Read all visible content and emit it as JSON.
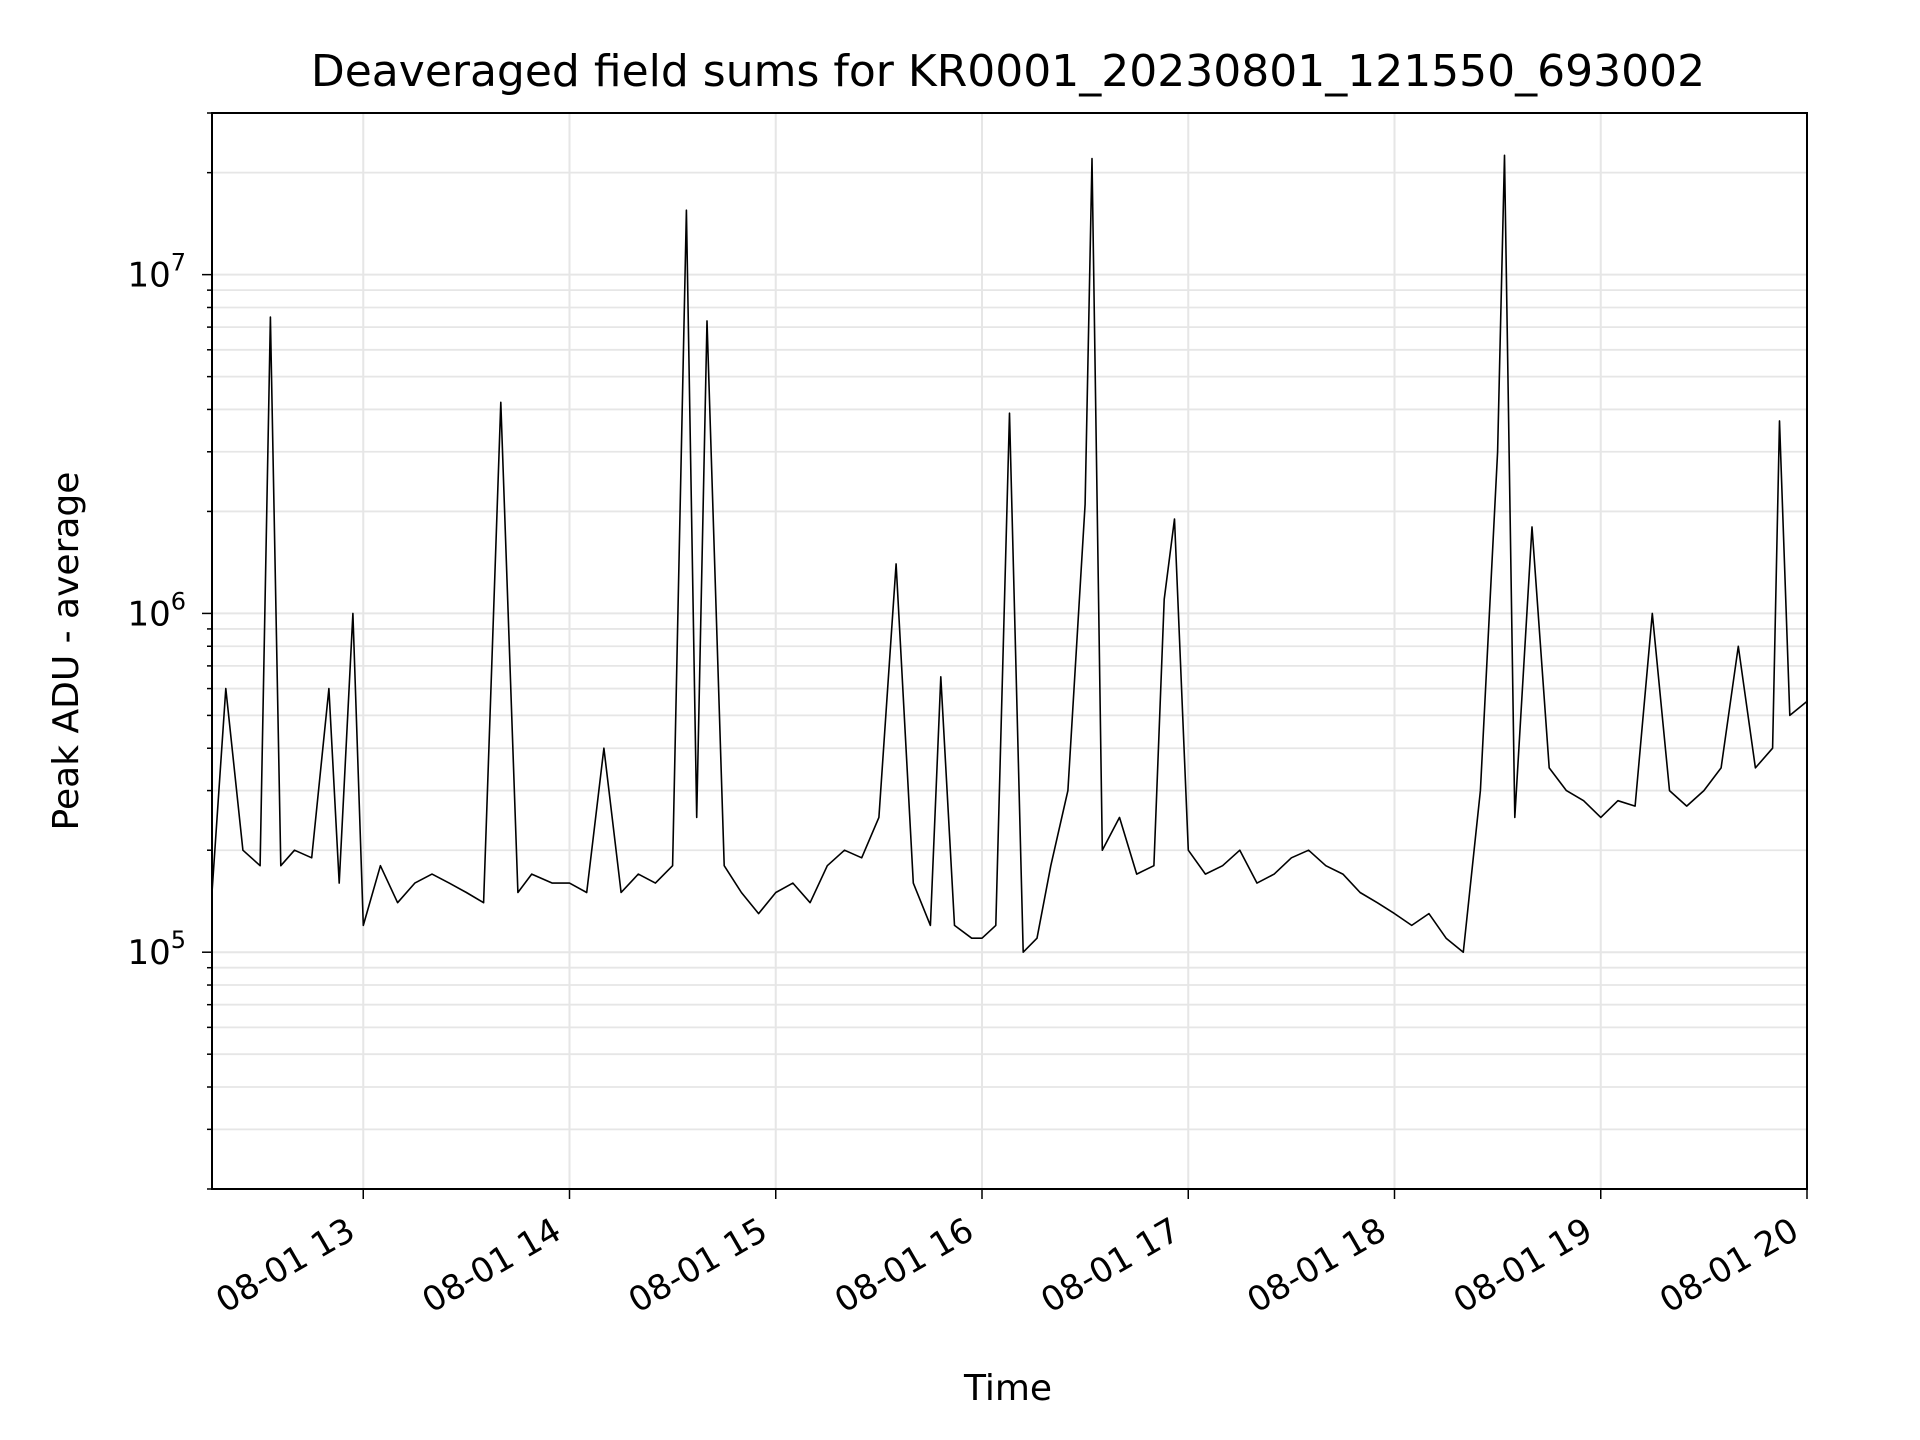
{
  "chart_data": {
    "type": "line",
    "title": "Deaveraged field sums for KR0001_20230801_121550_693002",
    "xlabel": "Time",
    "ylabel": "Peak ADU - average",
    "yscale": "log",
    "xlim": [
      "08-01 12:16",
      "08-01 20:00"
    ],
    "ylim": [
      20000,
      30000000
    ],
    "grid": true,
    "line_color": "#000000",
    "x_ticks": [
      {
        "label": "08-01 13",
        "time": "08-01 13:00"
      },
      {
        "label": "08-01 14",
        "time": "08-01 14:00"
      },
      {
        "label": "08-01 15",
        "time": "08-01 15:00"
      },
      {
        "label": "08-01 16",
        "time": "08-01 16:00"
      },
      {
        "label": "08-01 17",
        "time": "08-01 17:00"
      },
      {
        "label": "08-01 18",
        "time": "08-01 18:00"
      },
      {
        "label": "08-01 19",
        "time": "08-01 19:00"
      },
      {
        "label": "08-01 20",
        "time": "08-01 20:00"
      }
    ],
    "y_ticks": [
      {
        "base": "10",
        "exp": "5",
        "value": 100000
      },
      {
        "base": "10",
        "exp": "6",
        "value": 1000000
      },
      {
        "base": "10",
        "exp": "7",
        "value": 10000000
      }
    ],
    "series": [
      {
        "x": [
          "08-01 12:16",
          "08-01 12:20",
          "08-01 12:25",
          "08-01 12:30",
          "08-01 12:33",
          "08-01 12:36",
          "08-01 12:40",
          "08-01 12:45",
          "08-01 12:50",
          "08-01 12:53",
          "08-01 12:57",
          "08-01 13:00",
          "08-01 13:05",
          "08-01 13:10",
          "08-01 13:15",
          "08-01 13:20",
          "08-01 13:25",
          "08-01 13:30",
          "08-01 13:35",
          "08-01 13:40",
          "08-01 13:45",
          "08-01 13:49",
          "08-01 13:55",
          "08-01 14:00",
          "08-01 14:05",
          "08-01 14:10",
          "08-01 14:15",
          "08-01 14:20",
          "08-01 14:25",
          "08-01 14:30",
          "08-01 14:34",
          "08-01 14:37",
          "08-01 14:40",
          "08-01 14:45",
          "08-01 14:50",
          "08-01 14:55",
          "08-01 15:00",
          "08-01 15:05",
          "08-01 15:10",
          "08-01 15:15",
          "08-01 15:20",
          "08-01 15:25",
          "08-01 15:30",
          "08-01 15:35",
          "08-01 15:40",
          "08-01 15:45",
          "08-01 15:48",
          "08-01 15:52",
          "08-01 15:57",
          "08-01 16:00",
          "08-01 16:04",
          "08-01 16:08",
          "08-01 16:12",
          "08-01 16:16",
          "08-01 16:20",
          "08-01 16:25",
          "08-01 16:30",
          "08-01 16:32",
          "08-01 16:35",
          "08-01 16:40",
          "08-01 16:45",
          "08-01 16:50",
          "08-01 16:53",
          "08-01 16:56",
          "08-01 17:00",
          "08-01 17:05",
          "08-01 17:10",
          "08-01 17:15",
          "08-01 17:20",
          "08-01 17:25",
          "08-01 17:30",
          "08-01 17:35",
          "08-01 17:40",
          "08-01 17:45",
          "08-01 17:50",
          "08-01 17:55",
          "08-01 18:00",
          "08-01 18:05",
          "08-01 18:10",
          "08-01 18:15",
          "08-01 18:20",
          "08-01 18:25",
          "08-01 18:30",
          "08-01 18:32",
          "08-01 18:35",
          "08-01 18:40",
          "08-01 18:45",
          "08-01 18:50",
          "08-01 18:55",
          "08-01 19:00",
          "08-01 19:05",
          "08-01 19:10",
          "08-01 19:15",
          "08-01 19:20",
          "08-01 19:25",
          "08-01 19:30",
          "08-01 19:35",
          "08-01 19:40",
          "08-01 19:45",
          "08-01 19:50",
          "08-01 19:52",
          "08-01 19:55",
          "08-01 20:00"
        ],
        "y": [
          150000,
          600000,
          200000,
          180000,
          7500000,
          180000,
          200000,
          190000,
          600000,
          160000,
          1000000,
          120000,
          180000,
          140000,
          160000,
          170000,
          160000,
          150000,
          140000,
          4200000,
          150000,
          170000,
          160000,
          160000,
          150000,
          400000,
          150000,
          170000,
          160000,
          180000,
          15500000,
          250000,
          7300000,
          180000,
          150000,
          130000,
          150000,
          160000,
          140000,
          180000,
          200000,
          190000,
          250000,
          1400000,
          160000,
          120000,
          650000,
          120000,
          110000,
          110000,
          120000,
          3900000,
          100000,
          110000,
          180000,
          300000,
          2100000,
          22000000,
          200000,
          250000,
          170000,
          180000,
          1100000,
          1900000,
          200000,
          170000,
          180000,
          200000,
          160000,
          170000,
          190000,
          200000,
          180000,
          170000,
          150000,
          140000,
          130000,
          120000,
          130000,
          110000,
          100000,
          300000,
          3000000,
          22500000,
          250000,
          1800000,
          350000,
          300000,
          280000,
          250000,
          280000,
          270000,
          1000000,
          300000,
          270000,
          300000,
          350000,
          800000,
          350000,
          400000,
          3700000,
          500000,
          550000
        ]
      }
    ]
  }
}
